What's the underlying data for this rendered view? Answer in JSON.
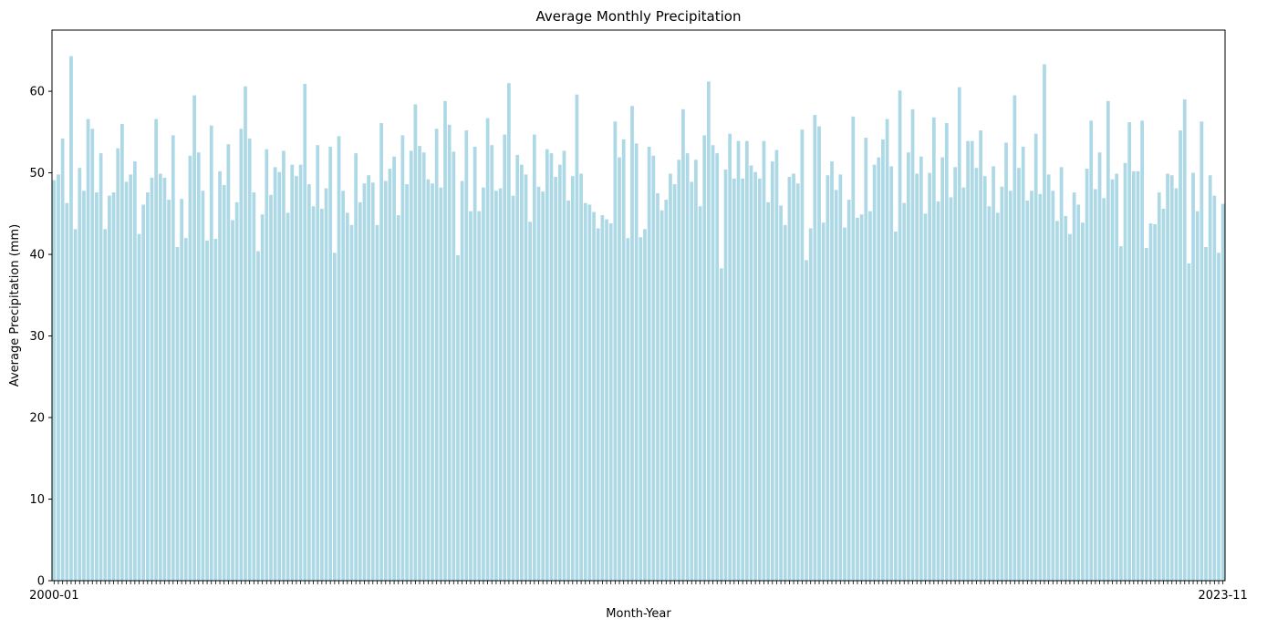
{
  "chart_data": {
    "type": "bar",
    "title": "Average Monthly Precipitation",
    "xlabel": "Month-Year",
    "ylabel": "Average Precipitation (mm)",
    "ylim": [
      0,
      67.5
    ],
    "yticks": [
      0,
      10,
      20,
      30,
      40,
      50,
      60
    ],
    "grid": false,
    "bar_color": "#add8e6",
    "x_tick_labels_note_visible": [
      "2000-01",
      "2023-11"
    ],
    "values": [
      49.1,
      49.8,
      54.2,
      46.3,
      64.3,
      43.1,
      50.6,
      47.8,
      56.6,
      55.4,
      47.6,
      52.4,
      43.1,
      47.2,
      47.6,
      53.0,
      56.0,
      48.9,
      49.8,
      51.4,
      42.5,
      46.1,
      47.6,
      49.4,
      56.6,
      49.9,
      49.4,
      46.7,
      54.6,
      40.9,
      46.8,
      42.0,
      52.1,
      59.5,
      52.5,
      47.8,
      41.7,
      55.8,
      41.9,
      50.2,
      48.5,
      53.5,
      44.2,
      46.4,
      55.4,
      60.6,
      54.2,
      47.6,
      40.4,
      44.9,
      52.9,
      47.3,
      50.7,
      50.1,
      52.7,
      45.1,
      51.0,
      49.6,
      51.0,
      60.9,
      48.6,
      45.9,
      53.4,
      45.6,
      48.1,
      53.2,
      40.2,
      54.5,
      47.8,
      45.1,
      43.6,
      52.4,
      46.4,
      48.7,
      49.7,
      48.8,
      43.6,
      56.1,
      49.0,
      50.5,
      52.0,
      44.8,
      54.6,
      48.6,
      52.7,
      58.4,
      53.3,
      52.5,
      49.2,
      48.7,
      55.4,
      48.2,
      58.8,
      55.9,
      52.6,
      39.9,
      49.0,
      55.2,
      45.3,
      53.2,
      45.3,
      48.2,
      56.7,
      53.4,
      47.8,
      48.1,
      54.7,
      61.0,
      47.2,
      52.2,
      51.0,
      49.8,
      44.0,
      54.7,
      48.3,
      47.7,
      52.9,
      52.4,
      49.5,
      51.0,
      52.7,
      46.6,
      49.6,
      59.6,
      49.9,
      46.3,
      46.1,
      45.2,
      43.2,
      44.8,
      44.3,
      43.8,
      56.3,
      51.9,
      54.1,
      42.0,
      58.2,
      53.6,
      42.1,
      43.1,
      53.2,
      52.1,
      47.5,
      45.4,
      46.7,
      49.9,
      48.6,
      51.6,
      57.8,
      52.4,
      48.9,
      51.6,
      45.9,
      54.6,
      61.2,
      53.4,
      52.4,
      38.3,
      50.4,
      54.8,
      49.3,
      53.9,
      49.3,
      53.9,
      50.9,
      50.1,
      49.3,
      53.9,
      46.4,
      51.4,
      52.8,
      46.0,
      43.6,
      49.5,
      49.9,
      48.7,
      55.3,
      39.3,
      43.2,
      57.1,
      55.7,
      43.9,
      49.7,
      51.4,
      47.9,
      49.8,
      43.3,
      46.7,
      56.9,
      44.5,
      44.9,
      54.3,
      45.3,
      51.0,
      51.9,
      54.1,
      56.6,
      50.8,
      42.8,
      60.1,
      46.3,
      52.5,
      57.8,
      49.9,
      52.0,
      45.0,
      50.0,
      56.8,
      46.5,
      51.9,
      56.1,
      47.0,
      50.7,
      60.5,
      48.2,
      53.9,
      53.9,
      50.6,
      55.2,
      49.6,
      45.9,
      50.8,
      45.1,
      48.3,
      53.7,
      47.8,
      59.5,
      50.6,
      53.2,
      46.6,
      47.8,
      54.8,
      47.4,
      63.3,
      49.8,
      47.8,
      44.1,
      50.7,
      44.7,
      42.5,
      47.6,
      46.1,
      43.9,
      50.5,
      56.4,
      48.0,
      52.5,
      46.9,
      58.8,
      49.2,
      49.9,
      41.0,
      51.2,
      56.2,
      50.2,
      50.2,
      56.4,
      40.8,
      43.8,
      43.7,
      47.6,
      45.6,
      49.9,
      49.7,
      48.1,
      55.2,
      59.0,
      38.9,
      50.0,
      45.3,
      56.3,
      40.9,
      49.7,
      47.2,
      40.2,
      46.2
    ]
  }
}
